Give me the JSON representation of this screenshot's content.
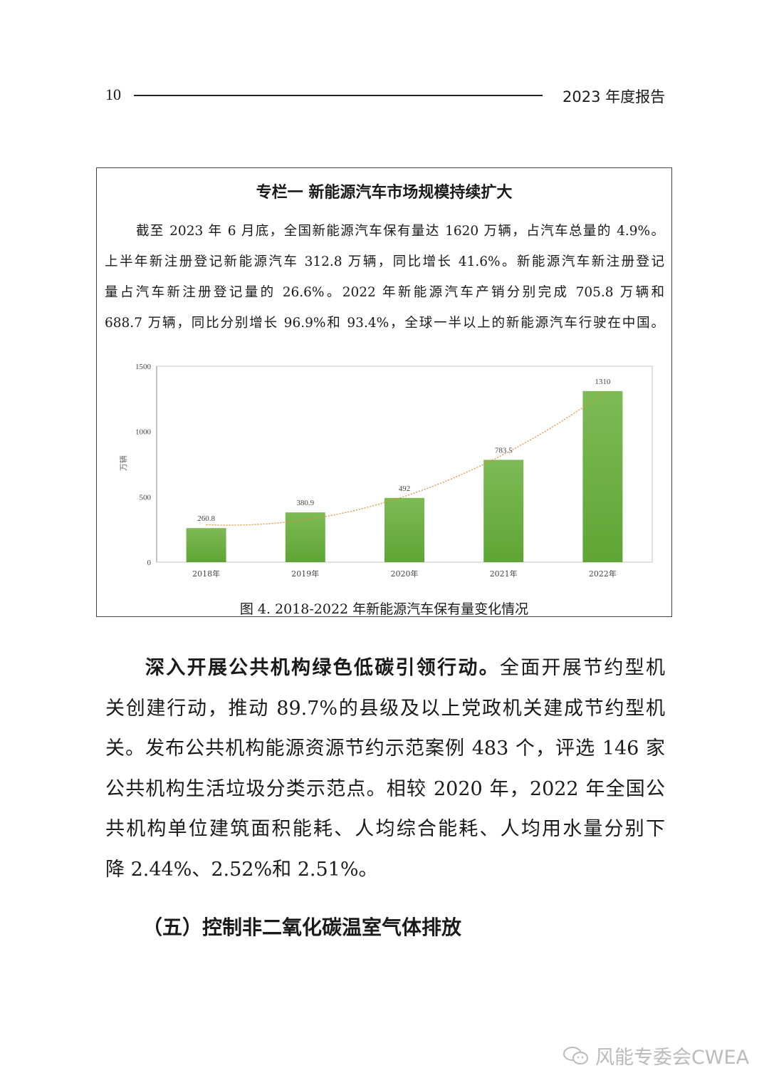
{
  "header": {
    "page_number": "10",
    "title": "2023 年度报告"
  },
  "box": {
    "title": "专栏一  新能源汽车市场规模持续扩大",
    "paragraph_lines": [
      "截至 2023 年 6 月底，全国新能源汽车保有量达 1620 万辆，占汽车总量的 4.9%。",
      "上半年新注册登记新能源汽车 312.8 万辆，同比增长 41.6%。新能源汽车新注册登记",
      "量占汽车新注册登记量的 26.6%。2022 年新能源汽车产销分别完成 705.8 万辆和",
      "688.7 万辆，同比分别增长 96.9%和 93.4%，全球一半以上的新能源汽车行驶在中国。"
    ],
    "caption": "图  4. 2018-2022 年新能源汽车保有量变化情况"
  },
  "chart_data": {
    "type": "bar",
    "categories": [
      "2018年",
      "2019年",
      "2020年",
      "2021年",
      "2022年"
    ],
    "values": [
      260.8,
      380.9,
      492,
      783.5,
      1310
    ],
    "value_labels": [
      "260.8",
      "380.9",
      "492",
      "783.5",
      "1310"
    ],
    "ylabel": "万辆",
    "ylim": [
      0,
      1500
    ],
    "yticks": [
      "0",
      "500",
      "1000",
      "1500"
    ],
    "trendline": "polynomial, dotted",
    "grid": false,
    "colors": {
      "bar": "#6aaf3d",
      "trend": "#e0903a"
    }
  },
  "body": {
    "lead": "深入开展公共机构绿色低碳引领行动。",
    "lines": [
      "全面开展节约型机",
      "关创建行动，推动 89.7%的县级及以上党政机关建成节约型机",
      "关。发布公共机构能源资源节约示范案例 483 个，评选 146 家",
      "公共机构生活垃圾分类示范点。相较 2020 年，2022 年全国公",
      "共机构单位建筑面积能耗、人均综合能耗、人均用水量分别下",
      "降 2.44%、2.52%和 2.51%。"
    ]
  },
  "section_heading": "（五）控制非二氧化碳温室气体排放",
  "watermark": {
    "text": "风能专委会CWEA",
    "icon": "wechat-icon"
  }
}
